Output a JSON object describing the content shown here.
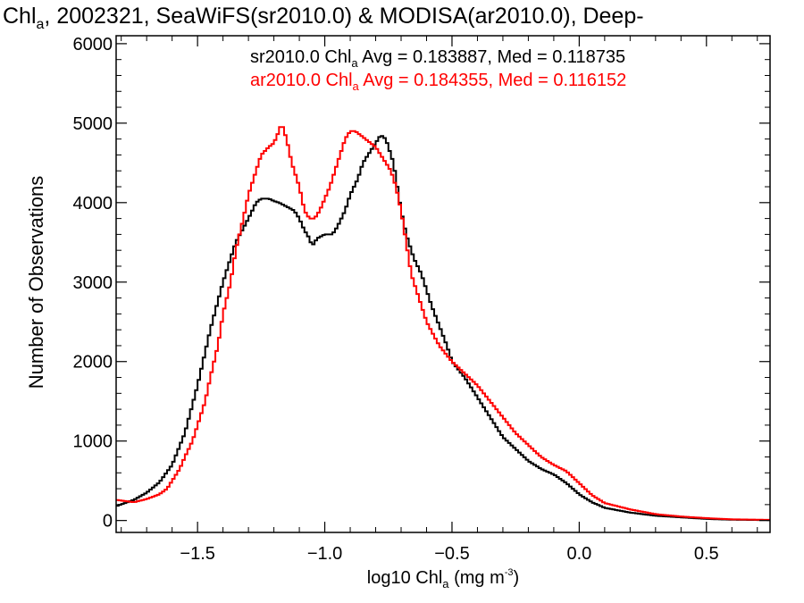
{
  "chart_data": {
    "type": "line",
    "title": {
      "prefix": "Chl",
      "sub": "a",
      "suffix": ", 2002321, SeaWiFS(sr2010.0) & MODISA(ar2010.0), Deep-"
    },
    "xlabel": {
      "prefix": "log10 Chl",
      "sub": "a",
      "suffix": " (mg m",
      "sup": "-3",
      "close": ")"
    },
    "ylabel": "Number of Observations",
    "xlim": [
      -1.82,
      0.75
    ],
    "ylim": [
      -150,
      6100
    ],
    "xticks": [
      {
        "value": -1.5,
        "label": "−1.5"
      },
      {
        "value": -1.0,
        "label": "−1.0"
      },
      {
        "value": -0.5,
        "label": "−0.5"
      },
      {
        "value": 0.0,
        "label": "0.0"
      },
      {
        "value": 0.5,
        "label": "0.5"
      }
    ],
    "yticks": [
      {
        "value": 0,
        "label": "0"
      },
      {
        "value": 1000,
        "label": "1000"
      },
      {
        "value": 2000,
        "label": "2000"
      },
      {
        "value": 3000,
        "label": "3000"
      },
      {
        "value": 4000,
        "label": "4000"
      },
      {
        "value": 5000,
        "label": "5000"
      },
      {
        "value": 6000,
        "label": "6000"
      }
    ],
    "grid": false,
    "legend_position": "top-right",
    "series": [
      {
        "name": "sr2010.0",
        "color": "#000000",
        "legend": {
          "prefix": "sr2010.0 Chl",
          "sub": "a",
          "suffix": " Avg = 0.183887, Med = 0.118735"
        },
        "x": [
          -1.82,
          -1.75,
          -1.7,
          -1.65,
          -1.6,
          -1.55,
          -1.5,
          -1.45,
          -1.4,
          -1.35,
          -1.3,
          -1.27,
          -1.25,
          -1.22,
          -1.2,
          -1.18,
          -1.15,
          -1.12,
          -1.1,
          -1.08,
          -1.06,
          -1.05,
          -1.03,
          -1.0,
          -0.97,
          -0.95,
          -0.92,
          -0.9,
          -0.87,
          -0.85,
          -0.82,
          -0.8,
          -0.78,
          -0.76,
          -0.75,
          -0.73,
          -0.72,
          -0.7,
          -0.68,
          -0.65,
          -0.62,
          -0.6,
          -0.58,
          -0.55,
          -0.52,
          -0.5,
          -0.45,
          -0.4,
          -0.35,
          -0.3,
          -0.25,
          -0.2,
          -0.15,
          -0.1,
          -0.05,
          0.0,
          0.05,
          0.1,
          0.2,
          0.3,
          0.4,
          0.5,
          0.6,
          0.75
        ],
        "y": [
          180,
          260,
          350,
          480,
          700,
          1100,
          1700,
          2400,
          3000,
          3500,
          3800,
          4000,
          4050,
          4050,
          4020,
          4000,
          3950,
          3900,
          3800,
          3650,
          3550,
          3450,
          3550,
          3600,
          3600,
          3700,
          3900,
          4100,
          4300,
          4500,
          4650,
          4750,
          4850,
          4800,
          4700,
          4500,
          4300,
          3900,
          3600,
          3300,
          3100,
          2900,
          2700,
          2450,
          2200,
          2000,
          1800,
          1550,
          1300,
          1050,
          900,
          750,
          650,
          580,
          470,
          330,
          230,
          160,
          100,
          60,
          40,
          20,
          10,
          5
        ]
      },
      {
        "name": "ar2010.0",
        "color": "#ff0000",
        "legend": {
          "prefix": "ar2010.0 Chl",
          "sub": "a",
          "suffix": " Avg = 0.184355, Med = 0.116152"
        },
        "x": [
          -1.82,
          -1.75,
          -1.7,
          -1.65,
          -1.62,
          -1.6,
          -1.57,
          -1.55,
          -1.52,
          -1.5,
          -1.47,
          -1.45,
          -1.42,
          -1.4,
          -1.37,
          -1.35,
          -1.32,
          -1.3,
          -1.27,
          -1.25,
          -1.22,
          -1.2,
          -1.18,
          -1.17,
          -1.15,
          -1.13,
          -1.1,
          -1.08,
          -1.06,
          -1.04,
          -1.02,
          -1.0,
          -0.98,
          -0.96,
          -0.94,
          -0.92,
          -0.9,
          -0.88,
          -0.86,
          -0.84,
          -0.82,
          -0.8,
          -0.78,
          -0.76,
          -0.74,
          -0.72,
          -0.7,
          -0.68,
          -0.66,
          -0.64,
          -0.62,
          -0.6,
          -0.55,
          -0.5,
          -0.45,
          -0.4,
          -0.35,
          -0.3,
          -0.25,
          -0.2,
          -0.15,
          -0.1,
          -0.05,
          0.0,
          0.05,
          0.1,
          0.2,
          0.3,
          0.4,
          0.5,
          0.6,
          0.75
        ],
        "y": [
          260,
          230,
          270,
          330,
          400,
          500,
          650,
          800,
          1000,
          1200,
          1500,
          1800,
          2200,
          2600,
          3000,
          3400,
          3800,
          4100,
          4400,
          4600,
          4700,
          4750,
          4900,
          5000,
          4800,
          4500,
          4200,
          3900,
          3800,
          3800,
          3900,
          4050,
          4200,
          4400,
          4600,
          4800,
          4900,
          4900,
          4850,
          4800,
          4750,
          4700,
          4600,
          4500,
          4400,
          4200,
          3900,
          3500,
          3100,
          2900,
          2700,
          2500,
          2200,
          2000,
          1850,
          1700,
          1500,
          1300,
          1100,
          950,
          800,
          700,
          620,
          470,
          320,
          220,
          140,
          80,
          50,
          30,
          15,
          8
        ]
      }
    ]
  }
}
